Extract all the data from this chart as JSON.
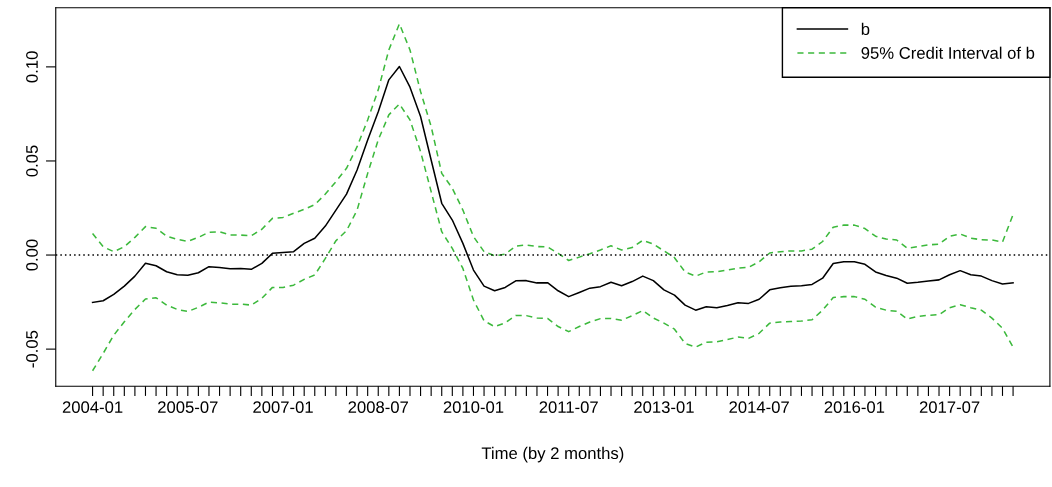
{
  "chart_data": {
    "type": "line",
    "xlabel": "Time (by 2 months)",
    "categories": [
      "2004-01",
      null,
      null,
      null,
      null,
      null,
      null,
      null,
      null,
      "2005-07",
      null,
      null,
      null,
      null,
      null,
      null,
      null,
      null,
      "2007-01",
      null,
      null,
      null,
      null,
      null,
      null,
      null,
      null,
      "2008-07",
      null,
      null,
      null,
      null,
      null,
      null,
      null,
      null,
      "2010-01",
      null,
      null,
      null,
      null,
      null,
      null,
      null,
      null,
      "2011-07",
      null,
      null,
      null,
      null,
      null,
      null,
      null,
      null,
      "2013-01",
      null,
      null,
      null,
      null,
      null,
      null,
      null,
      null,
      "2014-07",
      null,
      null,
      null,
      null,
      null,
      null,
      null,
      null,
      "2016-01",
      null,
      null,
      null,
      null,
      null,
      null,
      null,
      null,
      "2017-07",
      null,
      null,
      null,
      null,
      null,
      null
    ],
    "series": [
      {
        "name": "b",
        "color": "#000000",
        "line_style": "solid",
        "values": [
          -0.0252,
          -0.0243,
          -0.0209,
          -0.0165,
          -0.0112,
          -0.0044,
          -0.0057,
          -0.0089,
          -0.0105,
          -0.0108,
          -0.0094,
          -0.0062,
          -0.0066,
          -0.0073,
          -0.0071,
          -0.0076,
          -0.0044,
          0.0009,
          0.0014,
          0.0018,
          0.0062,
          0.0089,
          0.0154,
          0.0239,
          0.0324,
          0.0452,
          0.0612,
          0.0762,
          0.0931,
          0.1002,
          0.0892,
          0.0736,
          0.0505,
          0.0275,
          0.0186,
          0.0062,
          -0.008,
          -0.0165,
          -0.019,
          -0.0172,
          -0.0137,
          -0.0136,
          -0.0148,
          -0.0147,
          -0.019,
          -0.0221,
          -0.0199,
          -0.0176,
          -0.0168,
          -0.0145,
          -0.0163,
          -0.0141,
          -0.0112,
          -0.0136,
          -0.0185,
          -0.0213,
          -0.0266,
          -0.0293,
          -0.0275,
          -0.028,
          -0.0268,
          -0.0253,
          -0.0257,
          -0.0235,
          -0.0185,
          -0.0174,
          -0.0166,
          -0.0163,
          -0.0156,
          -0.0123,
          -0.0045,
          -0.0036,
          -0.0036,
          -0.0049,
          -0.009,
          -0.0109,
          -0.0123,
          -0.015,
          -0.0145,
          -0.0138,
          -0.0132,
          -0.0105,
          -0.0083,
          -0.0105,
          -0.0112,
          -0.0136,
          -0.0154,
          -0.0148
        ]
      },
      {
        "name": "95% Credit Interval of b",
        "color": "#3cb93c",
        "line_style": "dashed",
        "values": [
          0.0115,
          0.0044,
          0.0018,
          0.0044,
          0.0094,
          0.0151,
          0.0142,
          0.0101,
          0.0083,
          0.0073,
          0.0094,
          0.0121,
          0.0124,
          0.0106,
          0.0106,
          0.0103,
          0.0137,
          0.0195,
          0.02,
          0.0222,
          0.0243,
          0.0268,
          0.0324,
          0.039,
          0.0461,
          0.0576,
          0.0718,
          0.0878,
          0.109,
          0.1229,
          0.109,
          0.0869,
          0.0683,
          0.0434,
          0.0355,
          0.0239,
          0.0098,
          0.0018,
          -0.0004,
          0.0005,
          0.0048,
          0.0053,
          0.0045,
          0.0043,
          0.0009,
          -0.0029,
          -0.0011,
          0.0007,
          0.0027,
          0.0049,
          0.0027,
          0.004,
          0.0078,
          0.0058,
          0.0022,
          -0.0014,
          -0.009,
          -0.0112,
          -0.009,
          -0.0089,
          -0.008,
          -0.0069,
          -0.0065,
          -0.0036,
          0.0011,
          0.0018,
          0.0022,
          0.0022,
          0.0031,
          0.0072,
          0.0148,
          0.0159,
          0.0159,
          0.0141,
          0.01,
          0.0085,
          0.008,
          0.0036,
          0.0045,
          0.0054,
          0.0058,
          0.01,
          0.0112,
          0.009,
          0.0081,
          0.008,
          0.0069,
          0.0215
        ]
      },
      {
        "color": "#3cb93c",
        "line_style": "dashed",
        "values": [
          -0.0615,
          -0.0523,
          -0.0426,
          -0.0355,
          -0.0289,
          -0.0234,
          -0.0227,
          -0.0266,
          -0.0289,
          -0.03,
          -0.0278,
          -0.025,
          -0.0254,
          -0.0261,
          -0.0261,
          -0.0266,
          -0.023,
          -0.0172,
          -0.0172,
          -0.016,
          -0.0129,
          -0.0106,
          -0.0018,
          0.0076,
          0.0129,
          0.0239,
          0.0434,
          0.0612,
          0.0745,
          0.0803,
          0.0718,
          0.055,
          0.0337,
          0.0124,
          0.0035,
          -0.0071,
          -0.0239,
          -0.0349,
          -0.0381,
          -0.036,
          -0.0321,
          -0.0322,
          -0.0335,
          -0.0337,
          -0.038,
          -0.0407,
          -0.038,
          -0.0356,
          -0.0338,
          -0.0337,
          -0.0347,
          -0.0322,
          -0.0295,
          -0.0335,
          -0.0362,
          -0.0394,
          -0.047,
          -0.0489,
          -0.0463,
          -0.0461,
          -0.0449,
          -0.0436,
          -0.0443,
          -0.0416,
          -0.0362,
          -0.0356,
          -0.0353,
          -0.0351,
          -0.0344,
          -0.0293,
          -0.0226,
          -0.0221,
          -0.0221,
          -0.0235,
          -0.0277,
          -0.0293,
          -0.0299,
          -0.034,
          -0.0326,
          -0.032,
          -0.0317,
          -0.028,
          -0.0264,
          -0.028,
          -0.0293,
          -0.0335,
          -0.0389,
          -0.049
        ]
      }
    ],
    "ylim": [
      -0.0697,
      0.1314
    ],
    "yticks": [
      {
        "value": -0.05,
        "label": "-0.05"
      },
      {
        "value": 0,
        "label": "0.00"
      },
      {
        "value": 0.05,
        "label": "0.05"
      },
      {
        "value": 0.1,
        "label": "0.10"
      }
    ],
    "ref_lines": [
      {
        "axis": "y",
        "value": 0,
        "color": "#000000",
        "line_style": "dotted"
      }
    ],
    "grid": false,
    "legend": "top right",
    "marker": "none"
  }
}
